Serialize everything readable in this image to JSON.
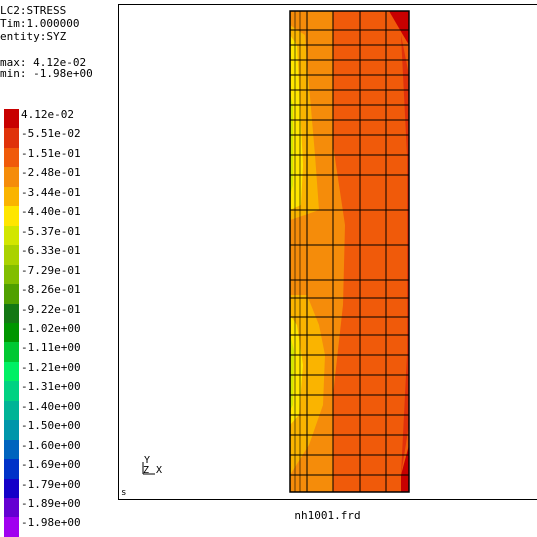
{
  "info": {
    "load_case": "LC2:STRESS",
    "time": "Tim:1.000000",
    "entity": "entity:SYZ",
    "max": "max: 4.12e-02",
    "min": "min: -1.98e+00"
  },
  "legend": [
    {
      "label": "4.12e-02",
      "color": "#c80000"
    },
    {
      "label": "-5.51e-02",
      "color": "#e0320a"
    },
    {
      "label": "-1.51e-01",
      "color": "#f05a0a"
    },
    {
      "label": "-2.48e-01",
      "color": "#f58c0a"
    },
    {
      "label": "-3.44e-01",
      "color": "#fab400"
    },
    {
      "label": "-4.40e-01",
      "color": "#ffe600"
    },
    {
      "label": "-5.37e-01",
      "color": "#d2e600"
    },
    {
      "label": "-6.33e-01",
      "color": "#aad200"
    },
    {
      "label": "-7.29e-01",
      "color": "#82be00"
    },
    {
      "label": "-8.26e-01",
      "color": "#50a000"
    },
    {
      "label": "-9.22e-01",
      "color": "#147814"
    },
    {
      "label": "-1.02e+00",
      "color": "#009600"
    },
    {
      "label": "-1.11e+00",
      "color": "#00c832"
    },
    {
      "label": "-1.21e+00",
      "color": "#00f064"
    },
    {
      "label": "-1.31e+00",
      "color": "#00d282"
    },
    {
      "label": "-1.40e+00",
      "color": "#00b496"
    },
    {
      "label": "-1.50e+00",
      "color": "#0096aa"
    },
    {
      "label": "-1.60e+00",
      "color": "#0064be"
    },
    {
      "label": "-1.69e+00",
      "color": "#0032c8"
    },
    {
      "label": "-1.79e+00",
      "color": "#1400c8"
    },
    {
      "label": "-1.89e+00",
      "color": "#6400d2"
    },
    {
      "label": "-1.98e+00",
      "color": "#a000f0"
    }
  ],
  "axes": {
    "y": "Y",
    "z": "Z",
    "x": "X"
  },
  "corner_label": "s",
  "filename": "nh1001.frd"
}
